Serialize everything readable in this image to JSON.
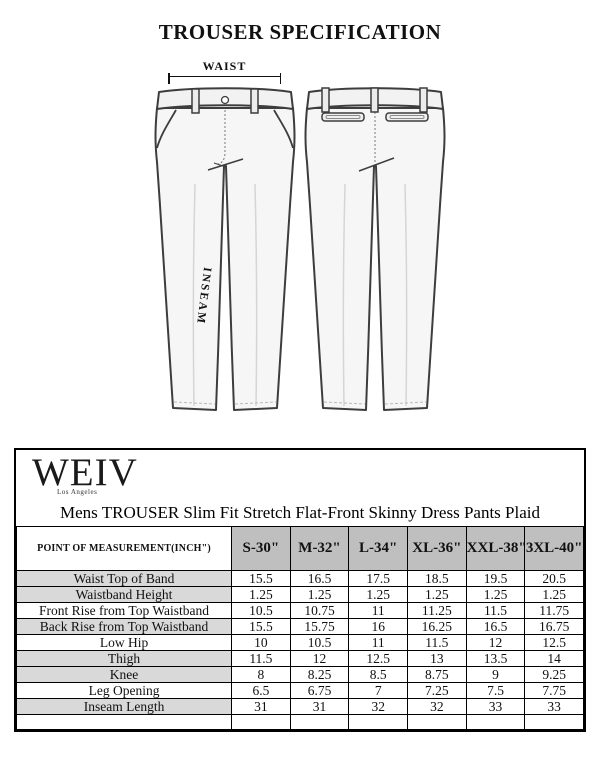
{
  "page": {
    "title": "TROUSER SPECIFICATION"
  },
  "diagram": {
    "waist_label": "WAIST",
    "inseam_label": "INSEAM",
    "views": [
      "trouser-front",
      "trouser-back"
    ]
  },
  "brand": {
    "logo": "WEIV",
    "sublabel": "Los Angeles"
  },
  "product": {
    "title": "Mens TROUSER Slim Fit Stretch Flat-Front Skinny Dress Pants Plaid"
  },
  "size_chart": {
    "measure_header": "POINT OF MEASUREMENT(INCH\")",
    "columns": [
      "S-30\"",
      "M-32\"",
      "L-34\"",
      "XL-36\"",
      "XXL-38\"",
      "3XL-40\""
    ],
    "rows": [
      {
        "label": "Waist Top of Band",
        "values": [
          "15.5",
          "16.5",
          "17.5",
          "18.5",
          "19.5",
          "20.5"
        ],
        "shaded": true
      },
      {
        "label": "Waistband Height",
        "values": [
          "1.25",
          "1.25",
          "1.25",
          "1.25",
          "1.25",
          "1.25"
        ],
        "shaded": true
      },
      {
        "label": "Front Rise from Top Waistband",
        "values": [
          "10.5",
          "10.75",
          "11",
          "11.25",
          "11.5",
          "11.75"
        ],
        "shaded": false
      },
      {
        "label": "Back Rise from Top Waistband",
        "values": [
          "15.5",
          "15.75",
          "16",
          "16.25",
          "16.5",
          "16.75"
        ],
        "shaded": true
      },
      {
        "label": "Low Hip",
        "values": [
          "10",
          "10.5",
          "11",
          "11.5",
          "12",
          "12.5"
        ],
        "shaded": false
      },
      {
        "label": "Thigh",
        "values": [
          "11.5",
          "12",
          "12.5",
          "13",
          "13.5",
          "14"
        ],
        "shaded": true
      },
      {
        "label": "Knee",
        "values": [
          "8",
          "8.25",
          "8.5",
          "8.75",
          "9",
          "9.25"
        ],
        "shaded": true
      },
      {
        "label": "Leg Opening",
        "values": [
          "6.5",
          "6.75",
          "7",
          "7.25",
          "7.5",
          "7.75"
        ],
        "shaded": false
      },
      {
        "label": "Inseam Length",
        "values": [
          "31",
          "31",
          "32",
          "32",
          "33",
          "33"
        ],
        "shaded": true
      }
    ],
    "colors": {
      "header_bg": "#bfbfbf",
      "shaded_row_bg": "#d9d9d9",
      "border": "#000000"
    }
  }
}
